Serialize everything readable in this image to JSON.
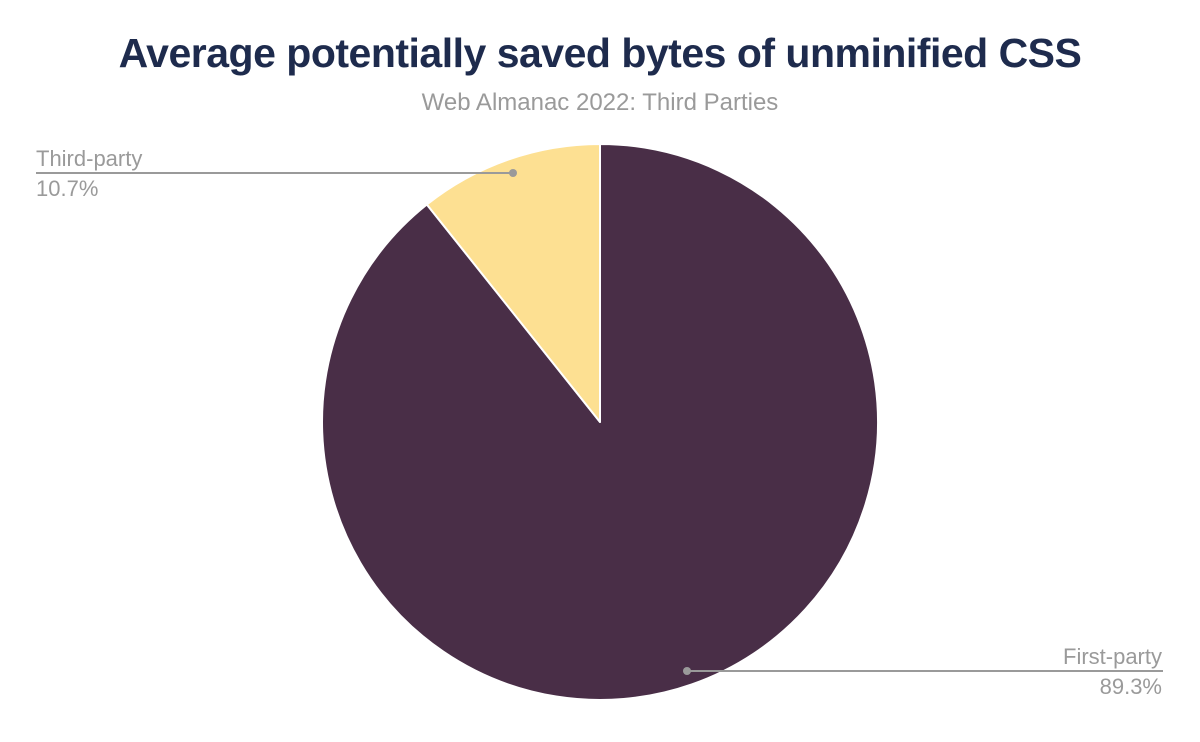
{
  "chart_data": {
    "type": "pie",
    "title": "Average potentially saved bytes of unminified CSS",
    "subtitle": "Web Almanac 2022: Third Parties",
    "slices": [
      {
        "label": "First-party",
        "value": 89.3,
        "display_value": "89.3%",
        "color": "#492E47"
      },
      {
        "label": "Third-party",
        "value": 10.7,
        "display_value": "10.7%",
        "color": "#FDE092"
      }
    ],
    "start_angle_deg": 0,
    "direction": "clockwise",
    "slice_border_color": "#FFFFFF",
    "labels": "callout",
    "legend_position": "none",
    "title_color": "#1E2B4D",
    "subtitle_color": "#9A9A9A",
    "label_color": "#9A9A9A",
    "leader_line_color": "#9A9A9A",
    "background_color": "#FFFFFF"
  }
}
